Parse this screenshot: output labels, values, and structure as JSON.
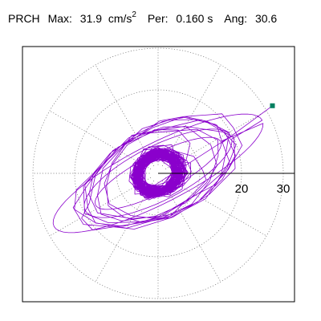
{
  "header": {
    "station": "PRCH",
    "max_label": "Max:",
    "max_value": "31.9",
    "max_unit_base": "cm/s",
    "max_unit_exp": "2",
    "per_label": "Per:",
    "per_value": "0.160 s",
    "ang_label": "Ang:",
    "ang_value": "30.6"
  },
  "chart_data": {
    "type": "polar-orbit",
    "title": "PRCH  Max: 31.9 cm/s2  Per: 0.160 s  Ang: 30.6",
    "radial_ticks": [
      10,
      20,
      30
    ],
    "radial_tick_labels": [
      "20",
      "30"
    ],
    "radial_max": 35,
    "angular_grid_deg": [
      0,
      30,
      60,
      90,
      120,
      150,
      180,
      210,
      240,
      270,
      300,
      330
    ],
    "grid": "dotted",
    "max_amplitude": 31.9,
    "max_angle_deg": 30.6,
    "max_point": {
      "x": 27.4,
      "y": 16.2
    },
    "orbit": {
      "color": "#8a00cc",
      "marker_color": "#008060",
      "ellipse_major": 28,
      "ellipse_minor": 13,
      "ellipse_angle_deg": 27,
      "core_spread": 8
    }
  }
}
